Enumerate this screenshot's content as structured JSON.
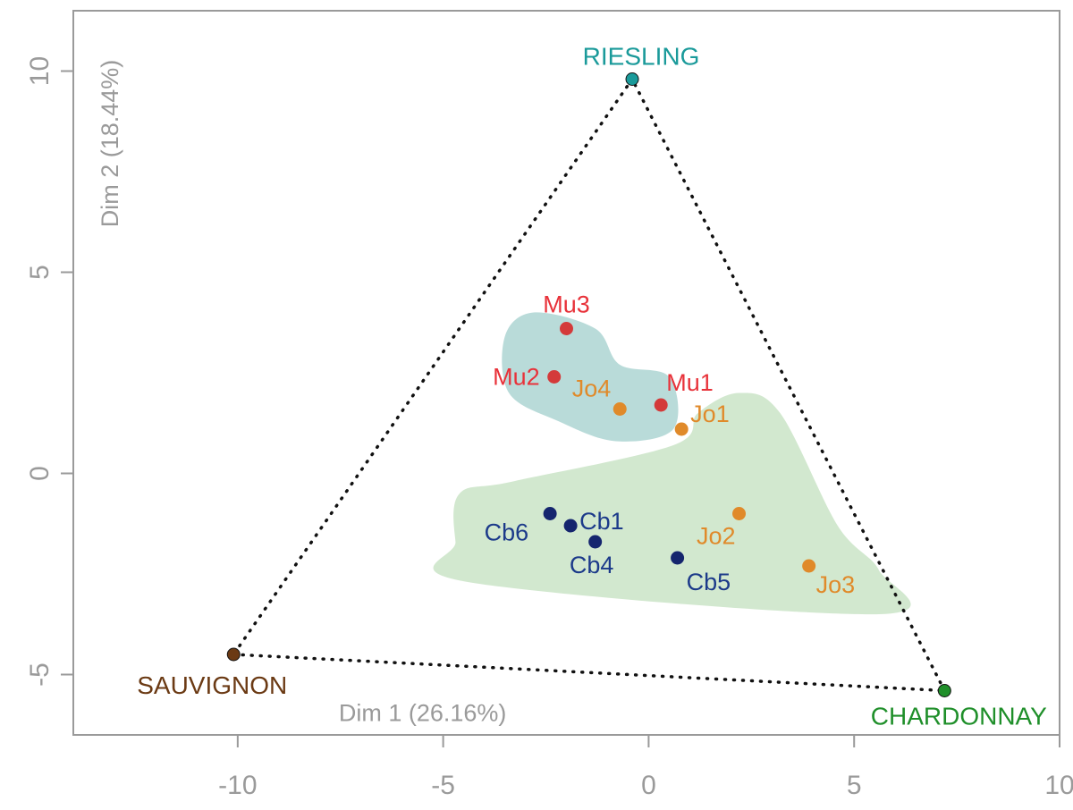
{
  "chart_data": {
    "type": "scatter",
    "title": "",
    "xlabel": "Dim 1 (26.16%)",
    "ylabel": "Dim 2 (18.44%)",
    "xlim": [
      -14,
      10
    ],
    "ylim": [
      -6.5,
      11.5
    ],
    "x_ticks": [
      -10,
      -5,
      0,
      5,
      10
    ],
    "y_ticks": [
      -5,
      0,
      5,
      10
    ],
    "grid": false,
    "vertices": [
      {
        "label": "RIESLING",
        "x": -0.4,
        "y": 9.8,
        "color": "#1a9a9a"
      },
      {
        "label": "SAUVIGNON",
        "x": -10.1,
        "y": -4.5,
        "color": "#6b3a14"
      },
      {
        "label": "CHARDONNAY",
        "x": 7.2,
        "y": -5.4,
        "color": "#1f8f2a"
      }
    ],
    "points": [
      {
        "label": "Mu3",
        "x": -2.0,
        "y": 3.6,
        "color": "#d43a3a",
        "label_color": "#e8323a"
      },
      {
        "label": "Mu2",
        "x": -2.3,
        "y": 2.4,
        "color": "#d43a3a",
        "label_color": "#e8323a"
      },
      {
        "label": "Mu1",
        "x": 0.3,
        "y": 1.7,
        "color": "#d43a3a",
        "label_color": "#e8323a"
      },
      {
        "label": "Jo4",
        "x": -0.7,
        "y": 1.6,
        "color": "#e08a2a",
        "label_color": "#e08a2a"
      },
      {
        "label": "Jo1",
        "x": 0.8,
        "y": 1.1,
        "color": "#e08a2a",
        "label_color": "#e08a2a"
      },
      {
        "label": "Jo2",
        "x": 2.2,
        "y": -1.0,
        "color": "#e08a2a",
        "label_color": "#e08a2a"
      },
      {
        "label": "Jo3",
        "x": 3.9,
        "y": -2.3,
        "color": "#e08a2a",
        "label_color": "#e08a2a"
      },
      {
        "label": "Cb6",
        "x": -2.4,
        "y": -1.0,
        "color": "#15256e",
        "label_color": "#1c3a8a"
      },
      {
        "label": "Cb1",
        "x": -1.9,
        "y": -1.3,
        "color": "#15256e",
        "label_color": "#1c3a8a"
      },
      {
        "label": "Cb4",
        "x": -1.3,
        "y": -1.7,
        "color": "#15256e",
        "label_color": "#1c3a8a"
      },
      {
        "label": "Cb5",
        "x": 0.7,
        "y": -2.1,
        "color": "#15256e",
        "label_color": "#1c3a8a"
      }
    ],
    "regions": [
      {
        "group": "Mu / Jo4",
        "color": "#b9dbd9",
        "boundary": [
          [
            -2.8,
            4.0
          ],
          [
            -1.3,
            3.6
          ],
          [
            -0.7,
            2.7
          ],
          [
            0.5,
            2.4
          ],
          [
            0.6,
            1.1
          ],
          [
            -0.8,
            0.8
          ],
          [
            -2.2,
            1.3
          ],
          [
            -3.4,
            2.0
          ],
          [
            -3.5,
            3.4
          ]
        ]
      },
      {
        "group": "Jo / Cb",
        "color": "#d2e8cf",
        "boundary": [
          [
            1.2,
            1.5
          ],
          [
            2.2,
            2.0
          ],
          [
            3.2,
            1.5
          ],
          [
            4.6,
            -1.3
          ],
          [
            5.6,
            -2.4
          ],
          [
            5.6,
            -3.5
          ],
          [
            -4.4,
            -2.7
          ],
          [
            -4.7,
            -1.7
          ],
          [
            -4.6,
            -0.5
          ],
          [
            -3.3,
            -0.2
          ],
          [
            0.6,
            0.7
          ]
        ]
      }
    ]
  }
}
